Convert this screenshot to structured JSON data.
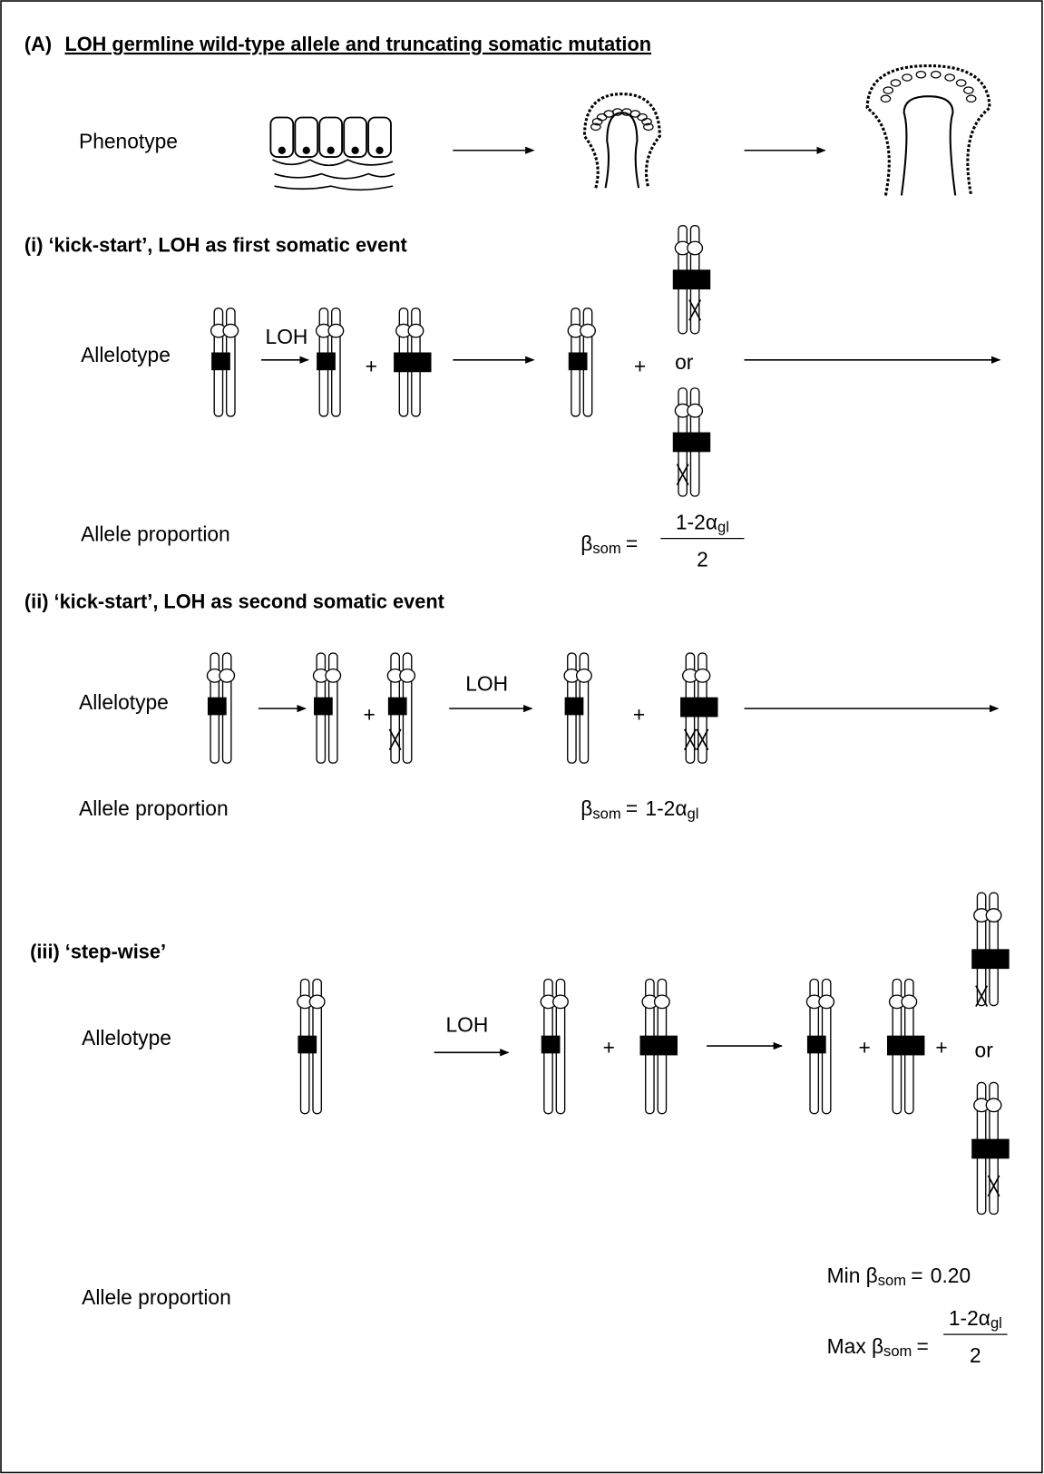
{
  "header": {
    "label": "(A)",
    "title": "LOH germline wild-type allele and truncating somatic mutation"
  },
  "phenotype": {
    "label": "Phenotype"
  },
  "sections": [
    {
      "heading": "(i) ‘kick-start’, LOH as first somatic event",
      "allelotype": "Allelotype",
      "arrow_label": "LOH",
      "plus": [
        "+",
        "+"
      ],
      "or": "or",
      "proportion_label": "Allele proportion",
      "formula": {
        "symbol": "β",
        "sub": "som",
        "eq": "=",
        "num": "1-2α",
        "num_sub": "gl",
        "den": "2"
      }
    },
    {
      "heading": "(ii) ‘kick-start’, LOH as second somatic event",
      "allelotype": "Allelotype",
      "arrow_label": "LOH",
      "plus": [
        "+",
        "+"
      ],
      "proportion_label": "Allele proportion",
      "formula": {
        "symbol": "β",
        "sub": "som",
        "eq": "=",
        "num": "1-2α",
        "num_sub": "gl"
      }
    },
    {
      "heading": "(iii) ‘step-wise’",
      "allelotype": "Allelotype",
      "arrow_label": "LOH",
      "plus": [
        "+",
        "+",
        "+"
      ],
      "or": "or",
      "proportion_label": "Allele proportion",
      "min": {
        "prefix": "Min",
        "symbol": "β",
        "sub": "som",
        "eq": "=",
        "value": "0.20"
      },
      "max": {
        "prefix": "Max",
        "symbol": "β",
        "sub": "som",
        "eq": "=",
        "num": "1-2α",
        "num_sub": "gl",
        "den": "2"
      }
    }
  ]
}
